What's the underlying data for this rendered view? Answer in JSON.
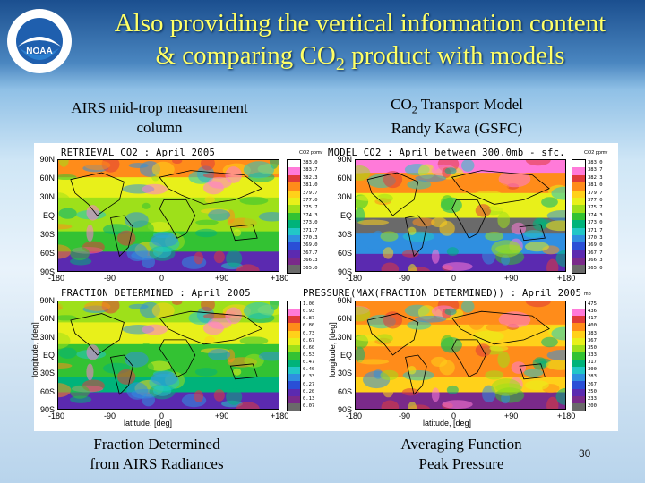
{
  "title_line1": "Also providing the vertical information content",
  "title_line2_pre": "& comparing CO",
  "title_line2_sub": "2",
  "title_line2_post": " product with models",
  "captions": {
    "top_left": "AIRS mid-trop measurement column",
    "top_right_pre": "CO",
    "top_right_sub": "2",
    "top_right_post": " Transport Model",
    "top_right_line2": "Randy Kawa (GSFC)",
    "bottom_left_1": "Fraction Determined",
    "bottom_left_2": "from AIRS Radiances",
    "bottom_right_1": "Averaging Function",
    "bottom_right_2": "Peak Pressure"
  },
  "slide_number": "30",
  "logo": {
    "text": "NOAA",
    "ring_text": "NATIONAL OCEANIC AND ATMOSPHERIC ADMINISTRATION • U.S. DEPARTMENT OF COMMERCE"
  },
  "maps": {
    "tl_title": "RETRIEVAL  CO2 : April 2005",
    "tr_title": "MODEL  CO2 : April between 300.0mb - sfc.",
    "bl_title": "FRACTION  DETERMINED : April 2005",
    "br_title": "PRESSURE(MAX(FRACTION DETERMINED)) : April 2005",
    "cbar_unit_co2": "CO2 ppmv",
    "cbar_unit_p": "mb",
    "lat_labels": [
      "90N",
      "60N",
      "30N",
      "EQ",
      "30S",
      "60S",
      "90S"
    ],
    "lon_labels": [
      "-180",
      "-90",
      "0",
      "+90",
      "+180"
    ],
    "xlabel": "latitude, [deg]",
    "ylabel": "longitude, [deg]"
  },
  "colorbars": {
    "co2": [
      "383.0",
      "383.7",
      "382.3",
      "381.0",
      "379.7",
      "377.0",
      "375.7",
      "374.3",
      "373.0",
      "371.7",
      "370.3",
      "369.0",
      "367.7",
      "366.3",
      "365.0"
    ],
    "fraction": [
      "1.00",
      "0.93",
      "0.87",
      "0.80",
      "0.73",
      "0.67",
      "0.60",
      "0.53",
      "0.47",
      "0.40",
      "0.33",
      "0.27",
      "0.20",
      "0.13",
      "0.07"
    ],
    "pressure": [
      "475.",
      "436.",
      "417.",
      "400.",
      "383.",
      "367.",
      "350.",
      "333.",
      "317.",
      "300.",
      "283.",
      "267.",
      "250.",
      "233.",
      "200."
    ]
  },
  "colors": {
    "title": "#ffff66",
    "scale": [
      "#ffffff",
      "#ff7ad9",
      "#e03a3a",
      "#ff8c1a",
      "#ffd11a",
      "#e8f01a",
      "#9ee01a",
      "#33c233",
      "#00b37a",
      "#22c7c7",
      "#2f8fe0",
      "#2a4fd6",
      "#5b2ab0",
      "#7a2a8a",
      "#6a6a6a"
    ]
  }
}
